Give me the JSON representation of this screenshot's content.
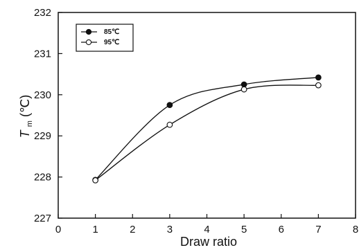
{
  "chart_data": {
    "type": "line",
    "xlabel": "Draw ratio",
    "ylabel": "T m (℃)",
    "ylabel_main": "T",
    "ylabel_sub": "m",
    "ylabel_unit": "(℃)",
    "xlim": [
      0,
      8
    ],
    "ylim": [
      227,
      232
    ],
    "xticks": [
      0,
      1,
      2,
      3,
      4,
      5,
      6,
      7,
      8
    ],
    "yticks": [
      227,
      228,
      229,
      230,
      231,
      232
    ],
    "grid": false,
    "legend_position": "top-left",
    "series": [
      {
        "name": "85℃",
        "x": [
          1,
          3,
          5,
          7
        ],
        "y": [
          227.93,
          229.75,
          230.25,
          230.42
        ],
        "marker": "filled-circle"
      },
      {
        "name": "95℃",
        "x": [
          1,
          3,
          5,
          7
        ],
        "y": [
          227.92,
          229.27,
          230.13,
          230.23
        ],
        "marker": "open-circle"
      }
    ]
  }
}
